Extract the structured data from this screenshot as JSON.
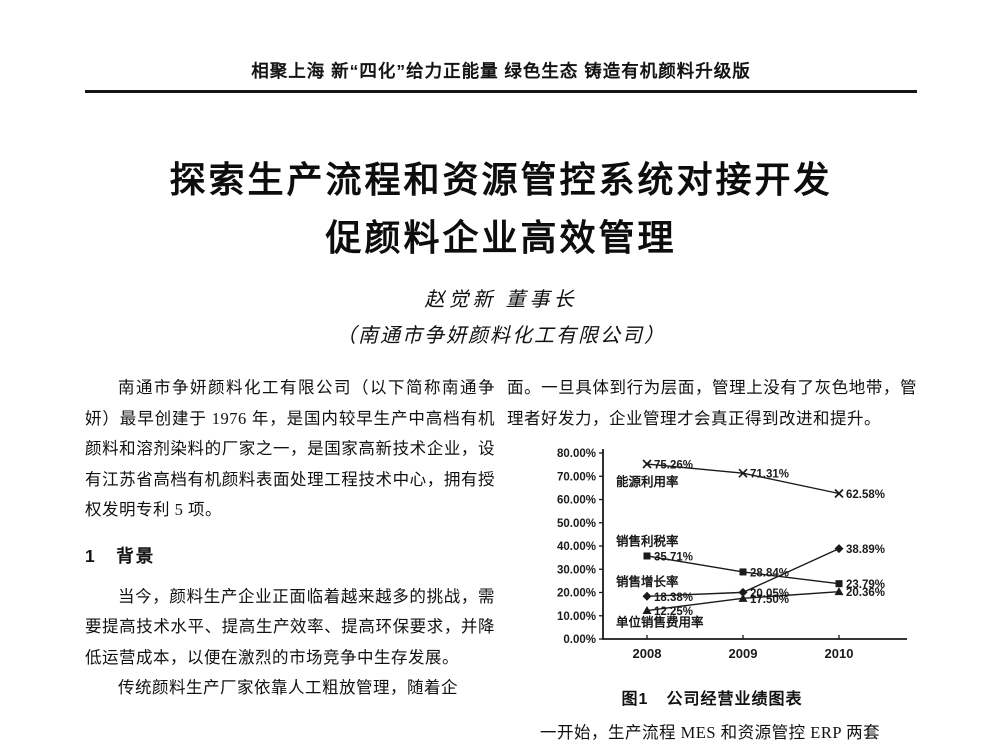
{
  "header": {
    "slogan": "相聚上海  新“四化”给力正能量   绿色生态  铸造有机颜料升级版"
  },
  "title": {
    "line1": "探索生产流程和资源管控系统对接开发",
    "line2": "促颜料企业高效管理"
  },
  "author": {
    "name_title": "赵觉新  董事长",
    "affiliation": "（南通市争妍颜料化工有限公司）"
  },
  "left_column": {
    "para1": "南通市争妍颜料化工有限公司（以下简称南通争妍）最早创建于 1976 年，是国内较早生产中高档有机颜料和溶剂染料的厂家之一，是国家高新技术企业，设有江苏省高档有机颜料表面处理工程技术中心，拥有授权发明专利 5 项。",
    "section_heading": "1　背景",
    "para2": "当今，颜料生产企业正面临着越来越多的挑战，需要提高技术水平、提高生产效率、提高环保要求，并降低运营成本，以便在激烈的市场竞争中生存发展。",
    "para3_partial": "传统颜料生产厂家依靠人工粗放管理，随着企"
  },
  "right_column": {
    "para1": "面。一旦具体到行为层面，管理上没有了灰色地带，管理者好发力，企业管理才会真正得到改进和提升。",
    "figure_caption_prefix": "图1",
    "figure_caption_text": "公司经营业绩图表",
    "para2_partial": "一开始，生产流程 MES 和资源管控 ERP 两套"
  },
  "chart_data": {
    "type": "line",
    "title": "公司经营业绩图表",
    "categories": [
      "2008",
      "2009",
      "2010"
    ],
    "series": [
      {
        "name": "能源利用率",
        "marker": "x",
        "values": [
          75.26,
          71.31,
          62.58
        ]
      },
      {
        "name": "销售利税率",
        "marker": "square",
        "values": [
          35.71,
          28.84,
          23.79
        ]
      },
      {
        "name": "销售增长率",
        "marker": "diamond",
        "values": [
          18.38,
          20.05,
          38.89
        ]
      },
      {
        "name": "单位销售费用率",
        "marker": "triangle",
        "values": [
          12.25,
          17.5,
          20.36
        ]
      }
    ],
    "yticks": [
      "80.00%",
      "70.00%",
      "60.00%",
      "50.00%",
      "40.00%",
      "30.00%",
      "20.00%",
      "10.00%",
      "0.00%"
    ],
    "ylim": [
      0,
      80
    ],
    "xlabel": "",
    "ylabel": "",
    "grid": false,
    "legend": "inline-annotations",
    "annotations": [
      {
        "text": "能源利用率",
        "y": 67.5
      },
      {
        "text": "销售利税率",
        "y": 42.0
      },
      {
        "text": "销售增长率",
        "y": 24.5
      },
      {
        "text": "单位销售费用率",
        "y": 7.0
      }
    ],
    "ink_color": "#1a1a1a"
  }
}
